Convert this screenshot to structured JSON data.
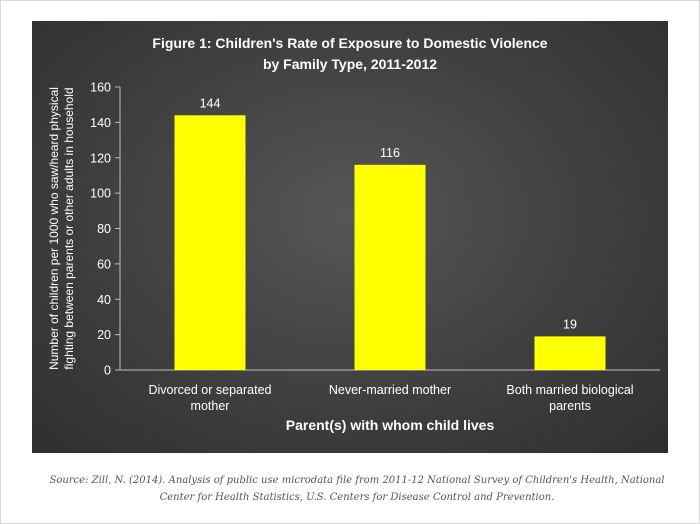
{
  "chart_data": {
    "type": "bar",
    "title_lines": [
      "Figure 1: Children's Rate of Exposure to Domestic Violence",
      "by Family Type,  2011-2012"
    ],
    "categories": [
      [
        "Divorced or separated",
        "mother"
      ],
      [
        "Never-married mother"
      ],
      [
        "Both married biological",
        "parents"
      ]
    ],
    "values": [
      144,
      116,
      19
    ],
    "data_labels": [
      "144",
      "116",
      "19"
    ],
    "xlabel": "Parent(s) with whom child lives",
    "ylabel_lines": [
      "Number of children per 1000 who saw/heard physical",
      "fighting between parents or other adults in household"
    ],
    "ylim": [
      0,
      160
    ],
    "yticks": [
      0,
      20,
      40,
      60,
      80,
      100,
      120,
      140,
      160
    ],
    "grid": false,
    "legend": "none",
    "colors": {
      "bar": "#ffff00",
      "background": "#3f3f3f",
      "text": "#ffffff"
    }
  },
  "source_note": "Source: Zill, N. (2014). Analysis of public use microdata file from 2011-12 National Survey of Children's Health, National Center for Health Statistics, U.S. Centers for Disease Control and Prevention."
}
